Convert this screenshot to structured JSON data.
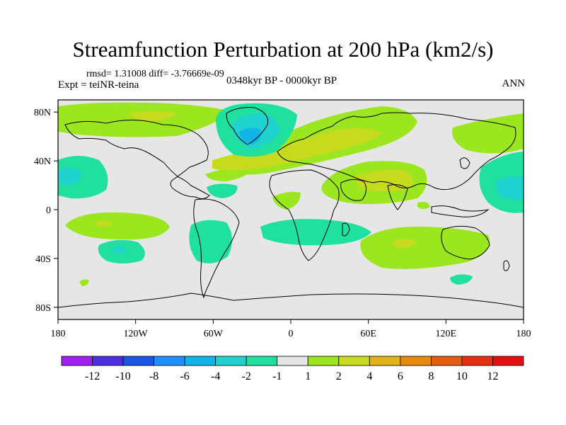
{
  "title": "Streamfunction Perturbation at 200 hPa (km2/s)",
  "stats": "rmsd= 1.31008 diff= -3.76669e-09",
  "experiment": "Expt = teiNR-teina",
  "period": "0348kyr BP - 0000kyr BP",
  "season": "ANN",
  "map": {
    "x_ticks": [
      "180",
      "120W",
      "60W",
      "0",
      "60E",
      "120E",
      "180"
    ],
    "y_ticks": [
      "80N",
      "40N",
      "0",
      "40S",
      "80S"
    ],
    "background": "#e6e6e6"
  },
  "colorbar": {
    "labels": [
      "-12",
      "-10",
      "-8",
      "-6",
      "-4",
      "-2",
      "-1",
      "1",
      "2",
      "4",
      "6",
      "8",
      "10",
      "12"
    ],
    "colors": [
      "#a020f0",
      "#4b2fe0",
      "#1b55e6",
      "#1e90ff",
      "#10b4e6",
      "#20d2cf",
      "#20e0a0",
      "#e6e6e6",
      "#9be61e",
      "#c6da1e",
      "#e0b416",
      "#e68a10",
      "#e65c10",
      "#e62e10",
      "#e60e0e"
    ]
  }
}
